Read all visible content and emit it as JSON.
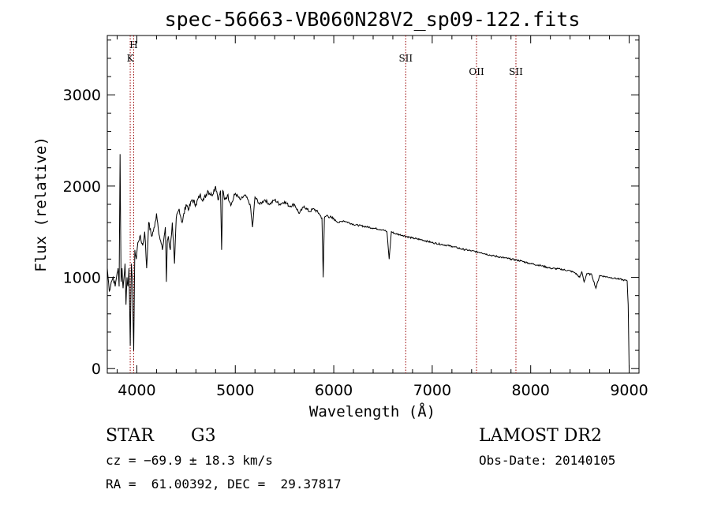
{
  "chart_data": {
    "type": "line",
    "title": "spec-56663-VB060N28V2_sp09-122.fits",
    "xlabel": "Wavelength (Å)",
    "ylabel": "Flux (relative)",
    "xlim": [
      3700,
      9100
    ],
    "ylim": [
      -50,
      3650
    ],
    "xticks": [
      4000,
      5000,
      6000,
      7000,
      8000,
      9000
    ],
    "yticks": [
      0,
      1000,
      2000,
      3000
    ],
    "grid": false,
    "color": "#000000",
    "line_color": "#990000",
    "x": [
      3700,
      3720,
      3740,
      3760,
      3780,
      3800,
      3810,
      3820,
      3830,
      3840,
      3850,
      3860,
      3870,
      3880,
      3890,
      3900,
      3910,
      3920,
      3933,
      3945,
      3955,
      3968,
      3980,
      3995,
      4010,
      4030,
      4060,
      4080,
      4100,
      4120,
      4150,
      4180,
      4200,
      4230,
      4260,
      4290,
      4300,
      4310,
      4320,
      4340,
      4360,
      4383,
      4400,
      4430,
      4460,
      4500,
      4530,
      4560,
      4600,
      4640,
      4680,
      4720,
      4760,
      4800,
      4830,
      4850,
      4861,
      4872,
      4890,
      4920,
      4960,
      5000,
      5050,
      5100,
      5150,
      5175,
      5200,
      5250,
      5300,
      5350,
      5400,
      5450,
      5500,
      5550,
      5600,
      5650,
      5700,
      5750,
      5800,
      5850,
      5880,
      5893,
      5905,
      5930,
      5980,
      6050,
      6100,
      6200,
      6300,
      6400,
      6500,
      6540,
      6563,
      6585,
      6620,
      6700,
      6800,
      6900,
      7000,
      7100,
      7200,
      7300,
      7400,
      7500,
      7600,
      7700,
      7800,
      7900,
      8000,
      8100,
      8200,
      8300,
      8400,
      8450,
      8498,
      8520,
      8542,
      8570,
      8620,
      8662,
      8700,
      8750,
      8800,
      8850,
      8900,
      8950,
      8980,
      8990,
      9000
    ],
    "y": [
      1100,
      850,
      950,
      1000,
      900,
      1050,
      1100,
      900,
      2350,
      950,
      1100,
      880,
      1000,
      1150,
      700,
      1000,
      900,
      1100,
      250,
      1150,
      980,
      200,
      1300,
      1200,
      1380,
      1450,
      1350,
      1500,
      1100,
      1600,
      1450,
      1550,
      1700,
      1450,
      1300,
      1550,
      950,
      1400,
      1450,
      1300,
      1600,
      1150,
      1650,
      1750,
      1600,
      1800,
      1750,
      1850,
      1800,
      1900,
      1850,
      1950,
      1900,
      2000,
      1850,
      1950,
      1300,
      1950,
      1850,
      1900,
      1800,
      1920,
      1850,
      1900,
      1800,
      1550,
      1880,
      1800,
      1850,
      1800,
      1850,
      1800,
      1830,
      1780,
      1800,
      1700,
      1780,
      1720,
      1750,
      1700,
      1650,
      1000,
      1650,
      1680,
      1650,
      1600,
      1620,
      1580,
      1560,
      1540,
      1520,
      1500,
      1200,
      1500,
      1480,
      1460,
      1430,
      1410,
      1380,
      1360,
      1340,
      1310,
      1290,
      1270,
      1240,
      1220,
      1200,
      1180,
      1150,
      1130,
      1100,
      1090,
      1070,
      1050,
      1000,
      1060,
      950,
      1040,
      1030,
      880,
      1020,
      1010,
      1000,
      990,
      980,
      970,
      960,
      700,
      0
    ],
    "lines": [
      {
        "name": "H",
        "wavelength": 3968
      },
      {
        "name": "K",
        "wavelength": 3933
      },
      {
        "name": "SII",
        "wavelength": 6731
      },
      {
        "name": "OII",
        "wavelength": 7450
      },
      {
        "name": "SII",
        "wavelength": 7850
      }
    ]
  },
  "footer": {
    "object_class": "STAR",
    "subclass": "G3",
    "survey": "LAMOST DR2",
    "cz": "cz = −69.9 ± 18.3 km/s",
    "obs_date": "Obs-Date: 20140105",
    "coords": "RA =  61.00392, DEC =  29.37817"
  }
}
